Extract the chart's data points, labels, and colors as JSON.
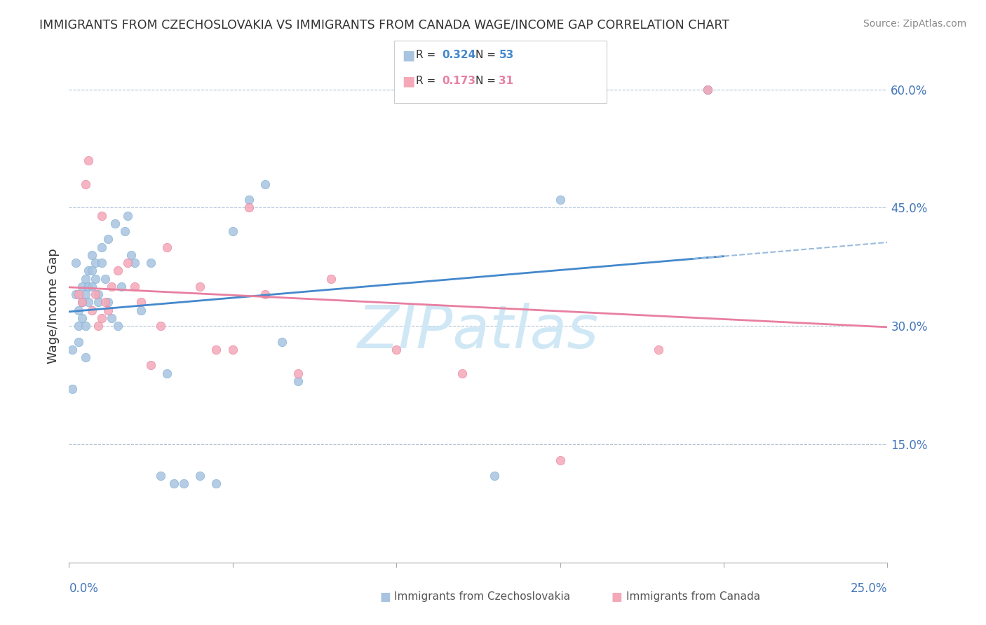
{
  "title": "IMMIGRANTS FROM CZECHOSLOVAKIA VS IMMIGRANTS FROM CANADA WAGE/INCOME GAP CORRELATION CHART",
  "source": "Source: ZipAtlas.com",
  "ylabel": "Wage/Income Gap",
  "ytick_vals": [
    0.15,
    0.3,
    0.45,
    0.6
  ],
  "ytick_labels": [
    "15.0%",
    "30.0%",
    "45.0%",
    "60.0%"
  ],
  "blue_scatter": "#a8c4e0",
  "blue_edge": "#7ab0d4",
  "blue_line": "#4488cc",
  "pink_scatter": "#f4a8b8",
  "pink_edge": "#e87fa0",
  "pink_line": "#e87fa0",
  "R_blue": "0.324",
  "N_blue": "53",
  "R_pink": "0.173",
  "N_pink": "31",
  "blue_points_x": [
    0.001,
    0.002,
    0.002,
    0.003,
    0.003,
    0.004,
    0.004,
    0.005,
    0.005,
    0.005,
    0.006,
    0.006,
    0.006,
    0.007,
    0.007,
    0.008,
    0.008,
    0.009,
    0.009,
    0.01,
    0.01,
    0.011,
    0.012,
    0.012,
    0.013,
    0.014,
    0.015,
    0.016,
    0.017,
    0.018,
    0.019,
    0.02,
    0.022,
    0.025,
    0.028,
    0.03,
    0.032,
    0.035,
    0.04,
    0.045,
    0.05,
    0.055,
    0.06,
    0.065,
    0.07,
    0.001,
    0.003,
    0.004,
    0.005,
    0.007,
    0.13,
    0.15,
    0.195
  ],
  "blue_points_y": [
    0.27,
    0.38,
    0.34,
    0.32,
    0.3,
    0.35,
    0.33,
    0.36,
    0.34,
    0.3,
    0.37,
    0.35,
    0.33,
    0.39,
    0.37,
    0.38,
    0.36,
    0.34,
    0.33,
    0.4,
    0.38,
    0.36,
    0.41,
    0.33,
    0.31,
    0.43,
    0.3,
    0.35,
    0.42,
    0.44,
    0.39,
    0.38,
    0.32,
    0.38,
    0.11,
    0.24,
    0.1,
    0.1,
    0.11,
    0.1,
    0.42,
    0.46,
    0.48,
    0.28,
    0.23,
    0.22,
    0.28,
    0.31,
    0.26,
    0.35,
    0.11,
    0.46,
    0.6
  ],
  "pink_points_x": [
    0.003,
    0.004,
    0.005,
    0.006,
    0.007,
    0.008,
    0.009,
    0.01,
    0.011,
    0.012,
    0.013,
    0.015,
    0.018,
    0.02,
    0.022,
    0.025,
    0.028,
    0.03,
    0.04,
    0.045,
    0.05,
    0.055,
    0.06,
    0.07,
    0.08,
    0.1,
    0.12,
    0.15,
    0.18,
    0.195,
    0.01
  ],
  "pink_points_y": [
    0.34,
    0.33,
    0.48,
    0.51,
    0.32,
    0.34,
    0.3,
    0.31,
    0.33,
    0.32,
    0.35,
    0.37,
    0.38,
    0.35,
    0.33,
    0.25,
    0.3,
    0.4,
    0.35,
    0.27,
    0.27,
    0.45,
    0.34,
    0.24,
    0.36,
    0.27,
    0.24,
    0.13,
    0.27,
    0.6,
    0.44
  ],
  "xlim": [
    0.0,
    0.25
  ],
  "ylim": [
    0.0,
    0.65
  ],
  "background_color": "#ffffff",
  "watermark_text": "ZIPatlas",
  "watermark_color": "#d0e8f5",
  "axis_color": "#4477bb",
  "grid_color": "#b0c4d8",
  "title_color": "#333333",
  "source_color": "#888888"
}
